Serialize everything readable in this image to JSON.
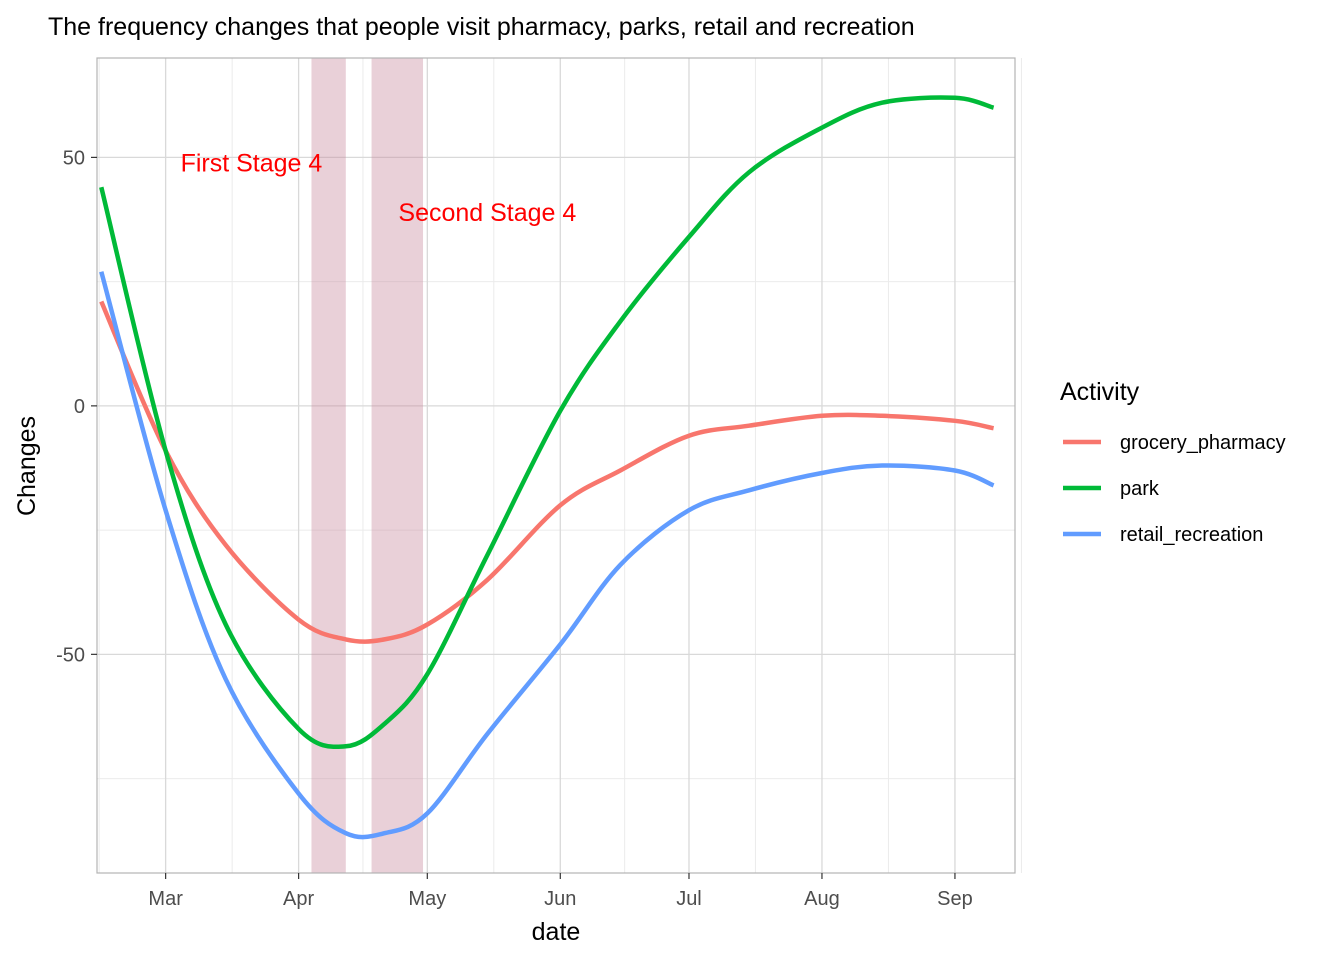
{
  "chart_data": {
    "type": "line",
    "title": "The frequency changes that people visit pharmacy, parks, retail and recreation",
    "xlabel": "date",
    "ylabel": "Changes",
    "legend_title": "Activity",
    "legend_position": "right",
    "grid": true,
    "xlim": [
      "2020-02-14",
      "2020-09-15"
    ],
    "ylim": [
      -94,
      70
    ],
    "x_ticks": [
      "2020-03-01",
      "2020-04-01",
      "2020-05-01",
      "2020-06-01",
      "2020-07-01",
      "2020-08-01",
      "2020-09-01"
    ],
    "x_tick_labels": [
      "Mar",
      "Apr",
      "May",
      "Jun",
      "Jul",
      "Aug",
      "Sep"
    ],
    "y_ticks": [
      -50,
      0,
      50
    ],
    "y_tick_labels": [
      "-50",
      "0",
      "50"
    ],
    "shaded_periods": [
      {
        "start": "2020-04-04",
        "end": "2020-04-12"
      },
      {
        "start": "2020-04-18",
        "end": "2020-04-30"
      }
    ],
    "annotations": [
      {
        "text": "First Stage 4",
        "x": "2020-03-21",
        "y": 49,
        "color": "#ff0000"
      },
      {
        "text": "Second Stage 4",
        "x": "2020-05-15",
        "y": 39,
        "color": "#ff0000"
      }
    ],
    "x": [
      "2020-02-15",
      "2020-03-01",
      "2020-03-15",
      "2020-04-01",
      "2020-04-12",
      "2020-04-21",
      "2020-05-01",
      "2020-05-15",
      "2020-06-01",
      "2020-06-15",
      "2020-07-01",
      "2020-07-15",
      "2020-08-01",
      "2020-08-15",
      "2020-09-01",
      "2020-09-10"
    ],
    "series": [
      {
        "name": "grocery_pharmacy",
        "color": "#f8766d",
        "values": [
          21,
          -9,
          -28,
          -43,
          -47,
          -47,
          -44,
          -35,
          -20,
          -13,
          -6,
          -4,
          -2,
          -2,
          -3,
          -4.5
        ]
      },
      {
        "name": "park",
        "color": "#00ba38",
        "values": [
          44,
          -9,
          -44,
          -65,
          -68.5,
          -64,
          -54,
          -30,
          -1,
          17,
          34,
          47,
          56,
          61,
          62,
          60
        ]
      },
      {
        "name": "retail_recreation",
        "color": "#619cff",
        "values": [
          27,
          -21,
          -55,
          -78,
          -86,
          -86,
          -82,
          -66,
          -48,
          -32,
          -21,
          -17,
          -13.5,
          -12,
          -13,
          -16
        ]
      }
    ]
  }
}
